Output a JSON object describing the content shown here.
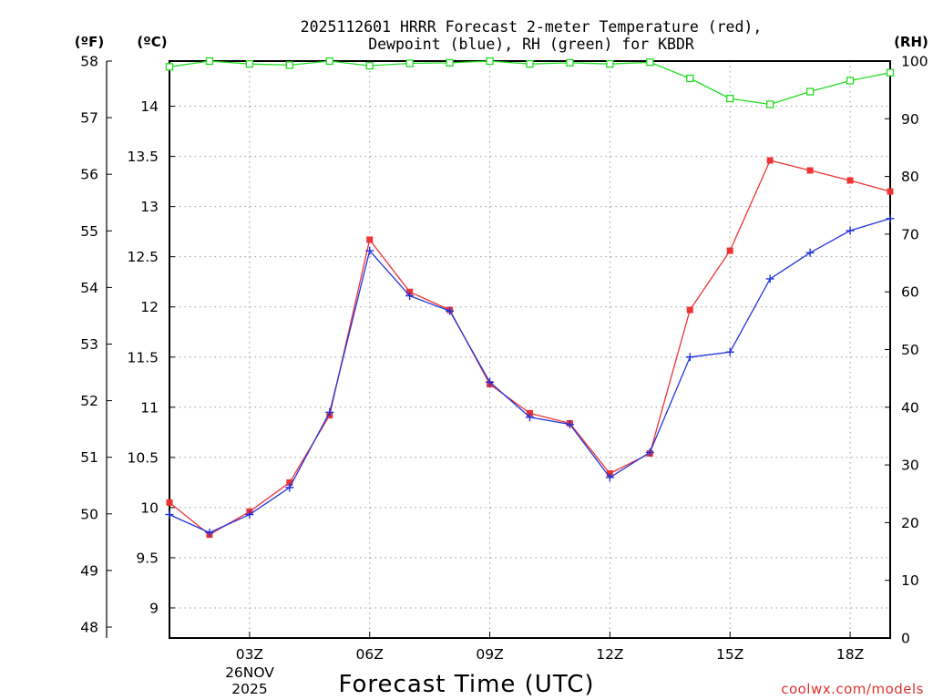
{
  "chart_data": {
    "type": "line",
    "title_line1": "2025112601 HRRR Forecast 2-meter Temperature (red),",
    "title_line2": "Dewpoint (blue), RH (green) for KBDR",
    "xlabel": "Forecast Time (UTC)",
    "date_label_day": "26NOV",
    "date_label_year": "2025",
    "credit": "coolwx.com/models",
    "units": {
      "fahrenheit": "(ºF)",
      "celsius": "(ºC)",
      "rh": "(RH)"
    },
    "x_hours": [
      1,
      2,
      3,
      4,
      5,
      6,
      7,
      8,
      9,
      10,
      11,
      12,
      13,
      14,
      15,
      16,
      17,
      18,
      19
    ],
    "x_range": [
      1,
      19
    ],
    "x_ticks": [
      {
        "hour": 3,
        "label": "03Z"
      },
      {
        "hour": 6,
        "label": "06Z"
      },
      {
        "hour": 9,
        "label": "09Z"
      },
      {
        "hour": 12,
        "label": "12Z"
      },
      {
        "hour": 15,
        "label": "15Z"
      },
      {
        "hour": 18,
        "label": "18Z"
      }
    ],
    "celsius_range": [
      8.7,
      14.45
    ],
    "celsius_ticks": [
      "9",
      "9.5",
      "10",
      "10.5",
      "11",
      "11.5",
      "12",
      "12.5",
      "13",
      "13.5",
      "14"
    ],
    "fahrenheit_ticks": [
      "48",
      "49",
      "50",
      "51",
      "52",
      "53",
      "54",
      "55",
      "56",
      "57",
      "58"
    ],
    "rh_range": [
      0,
      100
    ],
    "rh_ticks": [
      "0",
      "10",
      "20",
      "30",
      "40",
      "50",
      "60",
      "70",
      "80",
      "90",
      "100"
    ],
    "series": [
      {
        "name": "Temperature",
        "unit": "C",
        "axis": "celsius",
        "color": "#ee3333",
        "marker": "filled-square",
        "values": [
          10.05,
          9.73,
          9.96,
          10.25,
          10.92,
          12.67,
          12.15,
          11.97,
          11.23,
          10.94,
          10.84,
          10.34,
          10.54,
          11.97,
          12.56,
          13.46,
          13.36,
          13.26,
          13.15
        ]
      },
      {
        "name": "Dewpoint",
        "unit": "C",
        "axis": "celsius",
        "color": "#2233dd",
        "marker": "plus",
        "values": [
          9.93,
          9.75,
          9.93,
          10.2,
          10.95,
          12.56,
          12.11,
          11.96,
          11.25,
          10.9,
          10.83,
          10.3,
          10.55,
          11.5,
          11.55,
          12.28,
          12.54,
          12.76,
          12.88
        ]
      },
      {
        "name": "Relative Humidity",
        "unit": "%",
        "axis": "rh",
        "color": "#22dd22",
        "marker": "open-square",
        "values": [
          99,
          100,
          99.5,
          99.3,
          100,
          99.2,
          99.6,
          99.7,
          100,
          99.5,
          99.7,
          99.5,
          99.8,
          97,
          93.5,
          92.5,
          94.7,
          96.6,
          98
        ]
      }
    ]
  }
}
